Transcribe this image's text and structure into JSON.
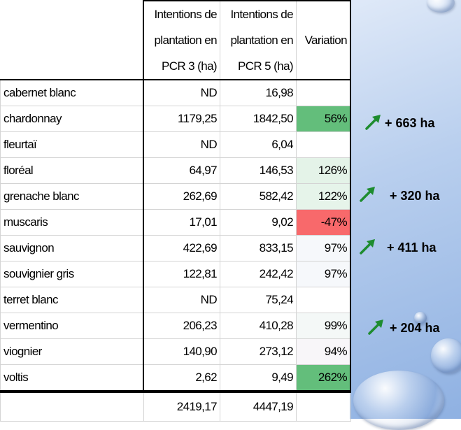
{
  "table": {
    "headers": [
      "",
      "Intentions de plantation en PCR 3 (ha)",
      "Intentions de plantation en PCR 5 (ha)",
      "Variation"
    ],
    "rows": [
      {
        "name": "cabernet blanc",
        "pcr3": "ND",
        "pcr5": "16,98",
        "variation": "",
        "color": ""
      },
      {
        "name": "chardonnay",
        "pcr3": "1179,25",
        "pcr5": "1842,50",
        "variation": "56%",
        "color": "#63be7b"
      },
      {
        "name": "fleurtaï",
        "pcr3": "ND",
        "pcr5": "6,04",
        "variation": "",
        "color": ""
      },
      {
        "name": "floréal",
        "pcr3": "64,97",
        "pcr5": "146,53",
        "variation": "126%",
        "color": "#e4f3e8"
      },
      {
        "name": "grenache blanc",
        "pcr3": "262,69",
        "pcr5": "582,42",
        "variation": "122%",
        "color": "#e6f4ea"
      },
      {
        "name": "muscaris",
        "pcr3": "17,01",
        "pcr5": "9,02",
        "variation": "-47%",
        "color": "#f8696b"
      },
      {
        "name": "sauvignon",
        "pcr3": "422,69",
        "pcr5": "833,15",
        "variation": "97%",
        "color": "#f6f8fb"
      },
      {
        "name": "souvignier gris",
        "pcr3": "122,81",
        "pcr5": "242,42",
        "variation": "97%",
        "color": "#f6f8fb"
      },
      {
        "name": "terret blanc",
        "pcr3": "ND",
        "pcr5": "75,24",
        "variation": "",
        "color": ""
      },
      {
        "name": "vermentino",
        "pcr3": "206,23",
        "pcr5": "410,28",
        "variation": "99%",
        "color": "#f4f8f7"
      },
      {
        "name": "viognier",
        "pcr3": "140,90",
        "pcr5": "273,12",
        "variation": "94%",
        "color": "#f8f6f9"
      },
      {
        "name": "voltis",
        "pcr3": "2,62",
        "pcr5": "9,49",
        "variation": "262%",
        "color": "#63be7b"
      }
    ],
    "totals": {
      "pcr3": "2419,17",
      "pcr5": "4447,19"
    }
  },
  "annotations": [
    {
      "label": "+ 663 ha",
      "icon": "arrow-up-right-icon"
    },
    {
      "label": "+ 320 ha",
      "icon": "arrow-up-right-icon"
    },
    {
      "label": "+ 411 ha",
      "icon": "arrow-up-right-icon"
    },
    {
      "label": "+ 204 ha",
      "icon": "arrow-up-right-icon"
    }
  ],
  "colors": {
    "arrow": "#1e8c2f",
    "panel": "#a9c4ea"
  }
}
